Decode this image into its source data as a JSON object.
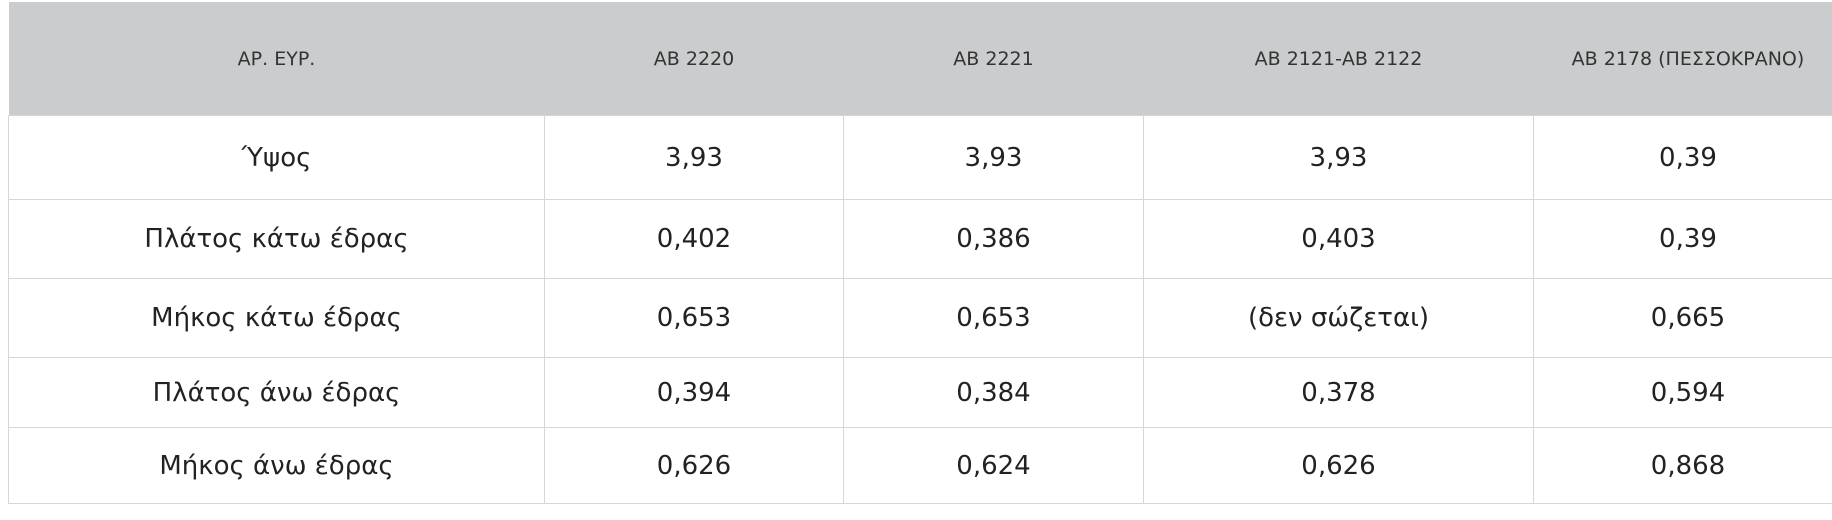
{
  "table": {
    "header": [
      "ΑΡ. ΕΥΡ.",
      "ΑΒ 2220",
      "ΑΒ 2221",
      "ΑΒ 2121-ΑΒ 2122",
      "ΑΒ 2178 (ΠΕΣΣΟΚΡΑΝΟ)"
    ],
    "rows": [
      [
        "Ύψος",
        "3,93",
        "3,93",
        "3,93",
        "0,39"
      ],
      [
        "Πλάτος κάτω έδρας",
        "0,402",
        "0,386",
        "0,403",
        "0,39"
      ],
      [
        "Μήκος κάτω έδρας",
        "0,653",
        "0,653",
        "(δεν σώζεται)",
        "0,665"
      ],
      [
        "Πλάτος άνω έδρας",
        "0,394",
        "0,384",
        "0,378",
        "0,594"
      ],
      [
        "Μήκος άνω έδρας",
        "0,626",
        "0,624",
        "0,626",
        "0,868"
      ]
    ]
  }
}
